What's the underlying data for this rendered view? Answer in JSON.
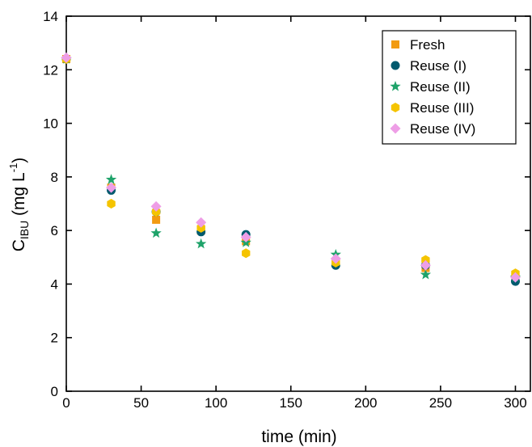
{
  "chart_data": {
    "type": "scatter",
    "title": "",
    "xlabel": "time (min)",
    "ylabel": {
      "main": "C",
      "sub": "IBU",
      "unit_pre": " (mg L",
      "unit_sup": "-1",
      "unit_post": ")"
    },
    "xlim": [
      0,
      310
    ],
    "ylim": [
      0,
      14
    ],
    "xticks": [
      0,
      50,
      100,
      150,
      200,
      250,
      300
    ],
    "yticks": [
      0,
      2,
      4,
      6,
      8,
      10,
      12,
      14
    ],
    "grid": false,
    "legend_position": "top-right",
    "series": [
      {
        "name": "Fresh",
        "marker": "square",
        "color": "#f29b11",
        "points": [
          [
            0,
            12.4
          ],
          [
            30,
            7.6
          ],
          [
            60,
            6.4
          ],
          [
            90,
            6.0
          ],
          [
            120,
            5.6
          ],
          [
            180,
            4.8
          ],
          [
            240,
            4.6
          ],
          [
            300,
            4.2
          ]
        ]
      },
      {
        "name": "Reuse (I)",
        "marker": "circle",
        "color": "#005a6e",
        "points": [
          [
            0,
            12.4
          ],
          [
            30,
            7.5
          ],
          [
            60,
            6.7
          ],
          [
            90,
            5.95
          ],
          [
            120,
            5.85
          ],
          [
            180,
            4.7
          ],
          [
            240,
            4.7
          ],
          [
            300,
            4.1
          ]
        ]
      },
      {
        "name": "Reuse (II)",
        "marker": "star",
        "color": "#1fa36a",
        "points": [
          [
            0,
            12.4
          ],
          [
            30,
            7.9
          ],
          [
            60,
            5.9
          ],
          [
            90,
            5.5
          ],
          [
            120,
            5.55
          ],
          [
            180,
            5.1
          ],
          [
            240,
            4.35
          ],
          [
            300,
            4.25
          ]
        ]
      },
      {
        "name": "Reuse (III)",
        "marker": "hexagon",
        "color": "#f5c400",
        "points": [
          [
            0,
            12.4
          ],
          [
            30,
            7.0
          ],
          [
            60,
            6.7
          ],
          [
            90,
            6.1
          ],
          [
            120,
            5.15
          ],
          [
            180,
            4.8
          ],
          [
            240,
            4.9
          ],
          [
            300,
            4.4
          ]
        ]
      },
      {
        "name": "Reuse (IV)",
        "marker": "diamond",
        "color": "#ee9ee6",
        "points": [
          [
            0,
            12.45
          ],
          [
            30,
            7.6
          ],
          [
            60,
            6.9
          ],
          [
            90,
            6.3
          ],
          [
            120,
            5.75
          ],
          [
            180,
            4.95
          ],
          [
            240,
            4.7
          ],
          [
            300,
            4.25
          ]
        ]
      }
    ]
  }
}
